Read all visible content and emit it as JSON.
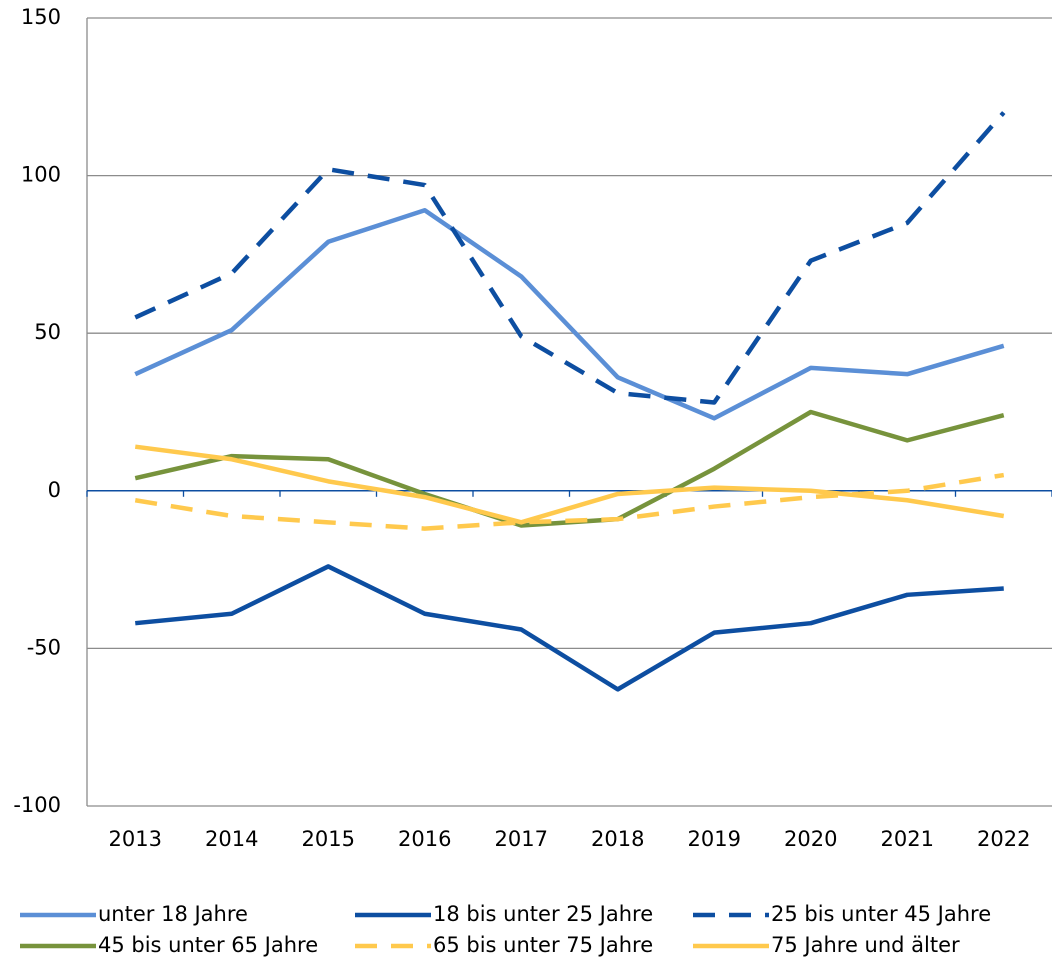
{
  "chart_data": {
    "type": "line",
    "categories": [
      "2013",
      "2014",
      "2015",
      "2016",
      "2017",
      "2018",
      "2019",
      "2020",
      "2021",
      "2022"
    ],
    "series": [
      {
        "name": "unter 18 Jahre",
        "color": "#5b8fd6",
        "dashed": false,
        "values": [
          37,
          51,
          79,
          89,
          68,
          36,
          23,
          39,
          37,
          46
        ]
      },
      {
        "name": "18 bis unter 25 Jahre",
        "color": "#0d4ea1",
        "dashed": false,
        "values": [
          -42,
          -39,
          -24,
          -39,
          -44,
          -63,
          -45,
          -42,
          -33,
          -31
        ]
      },
      {
        "name": "25 bis unter 45 Jahre",
        "color": "#0d4ea1",
        "dashed": true,
        "values": [
          55,
          69,
          102,
          97,
          49,
          31,
          28,
          73,
          85,
          120
        ]
      },
      {
        "name": "45 bis unter 65 Jahre",
        "color": "#77933c",
        "dashed": false,
        "values": [
          4,
          11,
          10,
          -1,
          -11,
          -9,
          7,
          25,
          16,
          24
        ]
      },
      {
        "name": "65 bis unter 75 Jahre",
        "color": "#ffc94d",
        "dashed": true,
        "values": [
          -3,
          -8,
          -10,
          -12,
          -10,
          -9,
          -5,
          -2,
          0,
          5
        ]
      },
      {
        "name": "75 Jahre und älter",
        "color": "#ffc94d",
        "dashed": false,
        "values": [
          14,
          10,
          3,
          -2,
          -10,
          -1,
          1,
          0,
          -3,
          -8
        ]
      }
    ],
    "ylim": [
      -100,
      150
    ],
    "yticks": [
      -100,
      -50,
      0,
      50,
      100,
      150
    ],
    "grid": true
  }
}
